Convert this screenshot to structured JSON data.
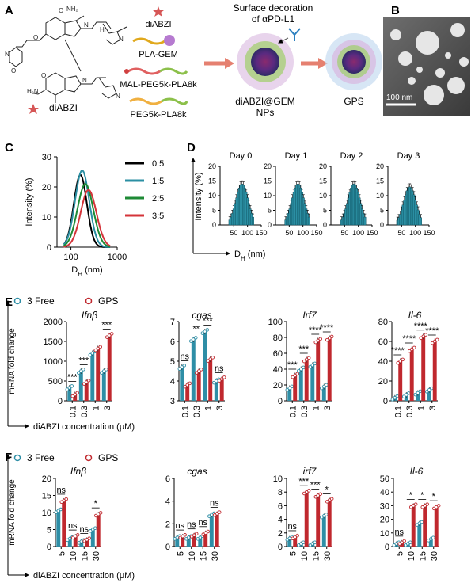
{
  "panel_labels": {
    "a": "A",
    "b": "B",
    "c": "C",
    "d": "D",
    "e": "E",
    "f": "F"
  },
  "panel_a": {
    "diabzi_label": "diABZI",
    "components": [
      "diABZI",
      "PLA-GEM",
      "MAL-PEG5k-PLA8k",
      "PEG5k-PLA8k"
    ],
    "decoration_line1": "Surface decoration",
    "decoration_line2": "of αPD-L1",
    "np_line1": "diABZI@GEM",
    "np_line2": "NPs",
    "gps_label": "GPS"
  },
  "panel_b": {
    "scalebar": "100 nm"
  },
  "colors": {
    "free": "#2e8ea6",
    "gps": "#c0282e",
    "c0": "#000000",
    "c1": "#2b8fa3",
    "c2": "#1e8a35",
    "c3": "#d4343a",
    "hist": "#2b8fa3"
  },
  "chart_data": [
    {
      "panel": "C",
      "type": "line",
      "xlabel": "DH (nm)",
      "ylabel": "Intensity (%)",
      "xscale": "log",
      "xlim": [
        50,
        1000
      ],
      "ylim": [
        0,
        30
      ],
      "xticks": [
        "100",
        "1000"
      ],
      "yticks": [
        0,
        10,
        20,
        30
      ],
      "legend": [
        "0:5",
        "1:5",
        "2:5",
        "3:5"
      ],
      "series": [
        {
          "name": "0:5",
          "peak_x": 160,
          "peak_y": 24,
          "width": 0.33
        },
        {
          "name": "1:5",
          "peak_x": 175,
          "peak_y": 25.5,
          "width": 0.36
        },
        {
          "name": "2:5",
          "peak_x": 205,
          "peak_y": 21,
          "width": 0.4
        },
        {
          "name": "3:5",
          "peak_x": 240,
          "peak_y": 19,
          "width": 0.4
        }
      ]
    },
    {
      "panel": "D",
      "type": "bar",
      "xlabel": "DH (nm)",
      "ylabel": "Intensity (%)",
      "xlim": [
        0,
        150
      ],
      "ylim": [
        0,
        20
      ],
      "xticks": [
        0,
        50,
        100,
        150
      ],
      "yticks": [
        0,
        5,
        10,
        15,
        20
      ],
      "subplots": [
        {
          "title": "Day 0",
          "center": 80,
          "peak": 14,
          "sd": 22
        },
        {
          "title": "Day 1",
          "center": 82,
          "peak": 14,
          "sd": 22
        },
        {
          "title": "Day 2",
          "center": 84,
          "peak": 14,
          "sd": 22
        },
        {
          "title": "Day 3",
          "center": 80,
          "peak": 13,
          "sd": 22
        }
      ]
    },
    {
      "panel": "E",
      "type": "bar",
      "legend": [
        "3 Free",
        "GPS"
      ],
      "ylabel": "mRNA fold change",
      "xlabel": "diABZI concentration (μM)",
      "categories": [
        "0.1",
        "0.3",
        "1",
        "3"
      ],
      "charts": [
        {
          "title": "Ifnβ",
          "ymax": 2000,
          "yticks": [
            0,
            500,
            1000,
            1500,
            2000
          ],
          "free": [
            330,
            750,
            1200,
            750
          ],
          "gps": [
            160,
            470,
            1320,
            1650
          ],
          "sig": [
            "***",
            "***",
            "",
            "***"
          ]
        },
        {
          "title": "cgas",
          "ymax": 7,
          "ymin": 3,
          "yticks": [
            3,
            4,
            5,
            6,
            7
          ],
          "free": [
            4.7,
            6.1,
            6.5,
            4.0
          ],
          "gps": [
            3.8,
            4.5,
            5.1,
            4.1
          ],
          "sig": [
            "ns",
            "**",
            "***",
            "ns"
          ]
        },
        {
          "title": "Irf7",
          "ymax": 100,
          "yticks": [
            0,
            20,
            40,
            60,
            80,
            100
          ],
          "free": [
            16,
            40,
            45,
            18
          ],
          "gps": [
            32,
            52,
            76,
            79
          ],
          "sig": [
            "***",
            "***",
            "****",
            "****"
          ]
        },
        {
          "title": "Il-6",
          "ymax": 80,
          "yticks": [
            0,
            20,
            40,
            60,
            80
          ],
          "free": [
            3,
            6,
            8,
            11
          ],
          "gps": [
            40,
            52,
            65,
            60
          ],
          "sig": [
            "****",
            "****",
            "****",
            "****"
          ]
        }
      ]
    },
    {
      "panel": "F",
      "type": "bar",
      "legend": [
        "3 Free",
        "GPS"
      ],
      "ylabel": "mRNA fold change",
      "xlabel": "diABZI concentration (μM)",
      "categories": [
        "5",
        "10",
        "15",
        "30"
      ],
      "charts": [
        {
          "title": "Ifnβ",
          "ymax": 20,
          "yticks": [
            0,
            5,
            10,
            15,
            20
          ],
          "free": [
            10.5,
            2.3,
            1.5,
            5
          ],
          "gps": [
            13.5,
            3,
            2,
            9.5
          ],
          "sig": [
            "ns",
            "ns",
            "ns",
            "*"
          ]
        },
        {
          "title": "cgas",
          "ymax": 6,
          "yticks": [
            0,
            2,
            4,
            6
          ],
          "free": [
            0.8,
            0.8,
            0.8,
            2.8
          ],
          "gps": [
            0.9,
            1,
            1.2,
            2.9
          ],
          "sig": [
            "ns",
            "ns",
            "ns",
            "ns"
          ]
        },
        {
          "title": "irf7",
          "ymax": 10,
          "yticks": [
            0,
            2,
            4,
            6,
            8,
            10
          ],
          "free": [
            1.2,
            0.4,
            0.4,
            4.5
          ],
          "gps": [
            1.4,
            8,
            7.5,
            6.8
          ],
          "sig": [
            "ns",
            "***",
            "***",
            "*"
          ]
        },
        {
          "title": "Il-6",
          "ymax": 50,
          "yticks": [
            0,
            10,
            20,
            30,
            40,
            50
          ],
          "free": [
            2,
            2,
            17,
            5.5
          ],
          "gps": [
            3,
            30,
            30,
            29
          ],
          "sig": [
            "ns",
            "*",
            "*",
            "*"
          ]
        }
      ]
    }
  ]
}
